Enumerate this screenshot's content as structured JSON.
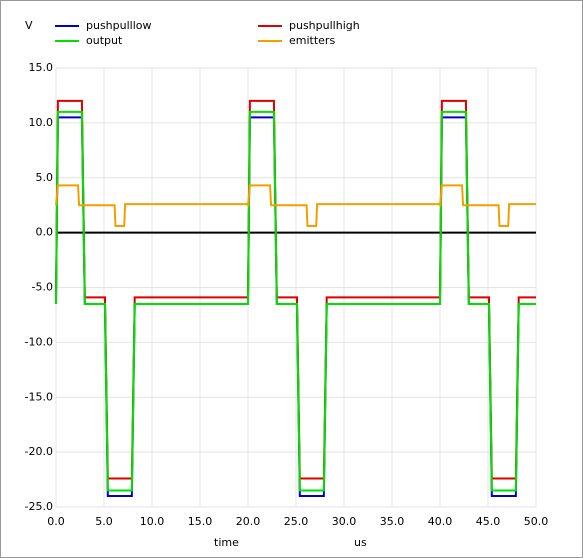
{
  "chart_data": {
    "type": "line",
    "y_label": "V",
    "x_label": "time",
    "x_unit": "us",
    "x": [
      0,
      0.2,
      2.3,
      2.4,
      2.7,
      3,
      5.1,
      5.4,
      6.1,
      6.2,
      7.1,
      7.2,
      7.9,
      8.2,
      19.9,
      20,
      20.2,
      22.3,
      22.4,
      22.7,
      23,
      25.1,
      25.4,
      26.1,
      26.2,
      27.1,
      27.2,
      27.9,
      28.2,
      39.9,
      40,
      40.2,
      42.3,
      42.4,
      42.7,
      43,
      45.1,
      45.4,
      46.1,
      46.2,
      47.1,
      47.2,
      47.9,
      48.2,
      50
    ],
    "series": [
      {
        "name": "pushpulllow",
        "color": "#0000cc",
        "values": [
          -6.5,
          10.5,
          10.5,
          10.5,
          10.5,
          -6.5,
          -6.5,
          -24,
          -24,
          -24,
          -24,
          -24,
          -24,
          -6.5,
          -6.5,
          -6.5,
          10.5,
          10.5,
          10.5,
          10.5,
          -6.5,
          -6.5,
          -24,
          -24,
          -24,
          -24,
          -24,
          -24,
          -6.5,
          -6.5,
          -6.5,
          10.5,
          10.5,
          10.5,
          10.5,
          -6.5,
          -6.5,
          -24,
          -24,
          -24,
          -24,
          -24,
          -24,
          -6.5,
          -6.5
        ]
      },
      {
        "name": "pushpullhigh",
        "color": "#dd0000",
        "values": [
          -5.9,
          12,
          12,
          12,
          12,
          -5.9,
          -5.9,
          -22.4,
          -22.4,
          -22.4,
          -22.4,
          -22.4,
          -22.4,
          -5.9,
          -5.9,
          -5.9,
          12,
          12,
          12,
          12,
          -5.9,
          -5.9,
          -22.4,
          -22.4,
          -22.4,
          -22.4,
          -22.4,
          -22.4,
          -5.9,
          -5.9,
          -5.9,
          12,
          12,
          12,
          12,
          -5.9,
          -5.9,
          -22.4,
          -22.4,
          -22.4,
          -22.4,
          -22.4,
          -22.4,
          -5.9,
          -5.9
        ]
      },
      {
        "name": "output",
        "color": "#00e000",
        "values": [
          -6.5,
          11,
          11,
          11,
          11,
          -6.5,
          -6.5,
          -23.5,
          -23.5,
          -23.5,
          -23.5,
          -23.5,
          -23.5,
          -6.5,
          -6.5,
          -6.5,
          11,
          11,
          11,
          11,
          -6.5,
          -6.5,
          -23.5,
          -23.5,
          -23.5,
          -23.5,
          -23.5,
          -23.5,
          -6.5,
          -6.5,
          -6.5,
          11,
          11,
          11,
          11,
          -6.5,
          -6.5,
          -23.5,
          -23.5,
          -23.5,
          -23.5,
          -23.5,
          -23.5,
          -6.5,
          -6.5
        ]
      },
      {
        "name": "emitters",
        "color": "#f0a000",
        "values": [
          2.5,
          4.3,
          4.3,
          2.5,
          2.5,
          2.5,
          2.5,
          2.5,
          2.5,
          0.6,
          0.6,
          2.6,
          2.6,
          2.6,
          2.6,
          2.5,
          4.3,
          4.3,
          2.5,
          2.5,
          2.5,
          2.5,
          2.5,
          2.5,
          0.6,
          0.6,
          2.6,
          2.6,
          2.6,
          2.6,
          2.5,
          4.3,
          4.3,
          2.5,
          2.5,
          2.5,
          2.5,
          2.5,
          2.5,
          0.6,
          0.6,
          2.6,
          2.6,
          2.6,
          2.6
        ]
      }
    ],
    "xlim": [
      0,
      50
    ],
    "xticks": [
      {
        "value": 0,
        "label": "0.0"
      },
      {
        "value": 5,
        "label": "5.0"
      },
      {
        "value": 10,
        "label": "10.0"
      },
      {
        "value": 15,
        "label": "15.0"
      },
      {
        "value": 20,
        "label": "20.0"
      },
      {
        "value": 25,
        "label": "25.0"
      },
      {
        "value": 30,
        "label": "30.0"
      },
      {
        "value": 35,
        "label": "35.0"
      },
      {
        "value": 40,
        "label": "40.0"
      },
      {
        "value": 45,
        "label": "45.0"
      },
      {
        "value": 50,
        "label": "50.0"
      }
    ],
    "ylim": [
      -25,
      15
    ],
    "yticks": [
      {
        "value": -25,
        "label": "-25.0"
      },
      {
        "value": -20,
        "label": "-20.0"
      },
      {
        "value": -15,
        "label": "-15.0"
      },
      {
        "value": -10,
        "label": "-10.0"
      },
      {
        "value": -5,
        "label": "-5.0"
      },
      {
        "value": 0,
        "label": "0.0"
      },
      {
        "value": 5,
        "label": "5.0"
      },
      {
        "value": 10,
        "label": "10.0"
      },
      {
        "value": 15,
        "label": "15.0"
      }
    ],
    "grid": true
  }
}
